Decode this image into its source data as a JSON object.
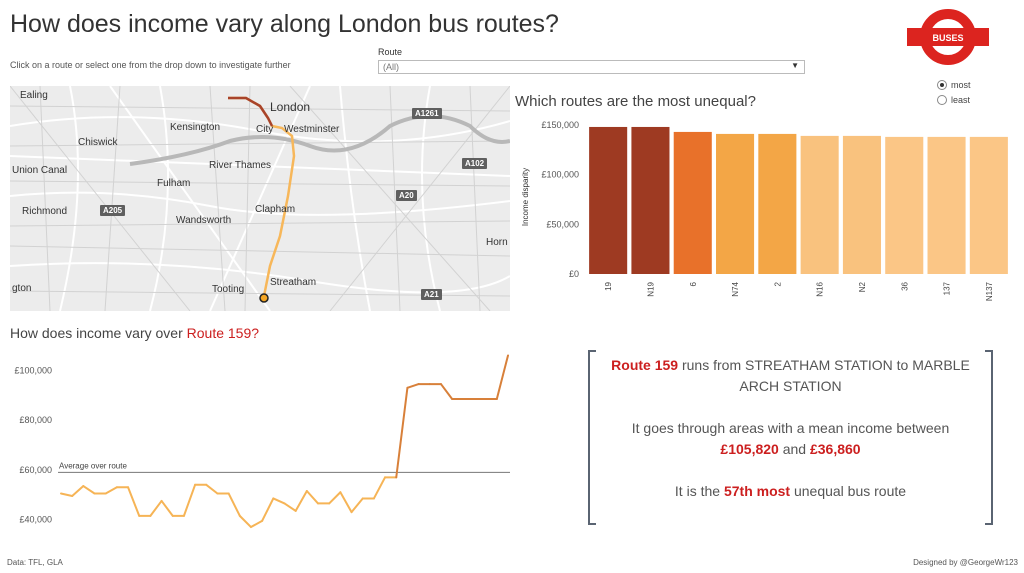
{
  "header": {
    "title": "How does income vary along London bus routes?",
    "hint": "Click on a route or select one from the drop down to investigate further"
  },
  "route_filter": {
    "label": "Route",
    "value": "(All)"
  },
  "logo": {
    "text": "BUSES",
    "ring_color": "#dc241f",
    "bar_color": "#dc241f"
  },
  "sort_toggle": {
    "options": [
      {
        "label": "most",
        "selected": true
      },
      {
        "label": "least",
        "selected": false
      }
    ]
  },
  "map": {
    "labels": [
      {
        "text": "Ealing",
        "cls": ""
      },
      {
        "text": "London",
        "cls": "big"
      },
      {
        "text": "Kensington",
        "cls": ""
      },
      {
        "text": "City",
        "cls": ""
      },
      {
        "text": "Westminster",
        "cls": ""
      },
      {
        "text": "Chiswick",
        "cls": ""
      },
      {
        "text": "River Thames",
        "cls": ""
      },
      {
        "text": "Union Canal",
        "cls": ""
      },
      {
        "text": "Fulham",
        "cls": ""
      },
      {
        "text": "Richmond",
        "cls": ""
      },
      {
        "text": "Wandsworth",
        "cls": ""
      },
      {
        "text": "Clapham",
        "cls": ""
      },
      {
        "text": "Horn",
        "cls": ""
      },
      {
        "text": "Tooting",
        "cls": ""
      },
      {
        "text": "Streatham",
        "cls": ""
      },
      {
        "text": "gton",
        "cls": ""
      }
    ],
    "roads": [
      "A1261",
      "A102",
      "A20",
      "A205",
      "A21"
    ]
  },
  "chart_data": [
    {
      "type": "bar",
      "title": "Which routes are the most unequal?",
      "ylabel": "Income disparity",
      "categories": [
        "19",
        "N19",
        "6",
        "N74",
        "2",
        "N16",
        "N2",
        "36",
        "137",
        "N137"
      ],
      "values": [
        148000,
        148000,
        143000,
        141000,
        141000,
        139000,
        139000,
        138000,
        138000,
        138000
      ],
      "colors": [
        "#9e3a22",
        "#9e3a22",
        "#e8712a",
        "#f3a646",
        "#f3a646",
        "#f9c27e",
        "#f9c27e",
        "#fbc686",
        "#fbc686",
        "#fbc686"
      ],
      "yticks": [
        "£0",
        "£50,000",
        "£100,000",
        "£150,000"
      ],
      "ylim": [
        0,
        155000
      ]
    },
    {
      "type": "line",
      "title_prefix": "How does income vary over ",
      "title_highlight": "Route  159?",
      "yticks": [
        "£40,000",
        "£60,000",
        "£80,000",
        "£100,000"
      ],
      "ylim": [
        33000,
        107000
      ],
      "reference_line": {
        "label": "Average over route",
        "value": 59000
      },
      "values": [
        50500,
        49500,
        53500,
        50500,
        50500,
        53000,
        53000,
        41500,
        41500,
        47500,
        41500,
        41500,
        54000,
        54000,
        50500,
        50500,
        41500,
        37000,
        39500,
        48500,
        46500,
        43500,
        51500,
        46500,
        46500,
        51000,
        43000,
        48500,
        48500,
        57000,
        57000,
        93000,
        94500,
        94500,
        94500,
        88500,
        88500,
        88500,
        88500,
        88500,
        106000
      ],
      "low_color": "#f6b456",
      "high_color": "#d8803a"
    }
  ],
  "info": {
    "route_label": "Route 159",
    "line1_rest": " runs from STREATHAM STATION to MARBLE ARCH STATION",
    "line2_prefix": "It goes through areas with a  mean income between ",
    "high_income": "£105,820",
    "and_word": " and ",
    "low_income": "£36,860",
    "line3_prefix": "It is the ",
    "rank": "57th most",
    "line3_suffix": " unequal bus route"
  },
  "footer": {
    "source": "Data: TFL, GLA",
    "credit": "Designed by @GeorgeWr123"
  }
}
